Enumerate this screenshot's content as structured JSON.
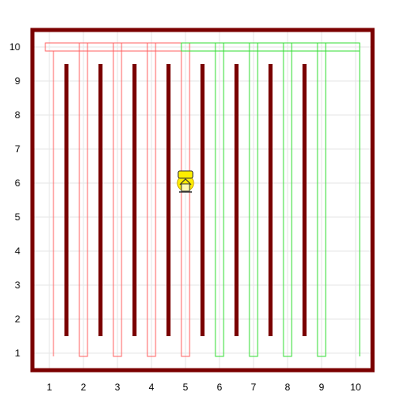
{
  "grid": {
    "x_min": 1,
    "x_max": 10,
    "y_min": 1,
    "y_max": 10,
    "x_labels": [
      "1",
      "2",
      "3",
      "4",
      "5",
      "6",
      "7",
      "8",
      "9",
      "10"
    ],
    "y_labels": [
      "1",
      "2",
      "3",
      "4",
      "5",
      "6",
      "7",
      "8",
      "9",
      "10"
    ]
  },
  "colors": {
    "wall": "#7b0000",
    "gridline": "#e6e6e6",
    "red_path": "#ff6060",
    "green_path": "#33dd33",
    "agent": "#ffee00"
  },
  "walls": [
    2,
    3,
    4,
    5,
    6,
    7,
    8,
    9
  ],
  "red_path": {
    "columns": [
      2,
      3,
      4,
      5
    ],
    "x_range": [
      1,
      5
    ]
  },
  "green_path": {
    "columns": [
      6,
      7,
      8,
      9
    ],
    "x_range": [
      5,
      10
    ]
  },
  "agent": {
    "icon": "robot-icon",
    "position": [
      5,
      6
    ]
  }
}
